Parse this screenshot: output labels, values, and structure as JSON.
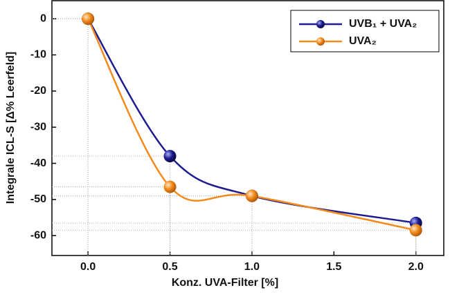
{
  "chart_data": {
    "type": "scatter",
    "x_label": "Konz. UVA-Filter [%]",
    "y_label": "Integrale ICL-S [Δ% Leerfeld]",
    "series": [
      {
        "name": "UVB₁ + UVA₂",
        "color": "#1c1c8f",
        "x": [
          0,
          0.5,
          1.0,
          2.0
        ],
        "values": [
          0,
          -38,
          -49,
          -56.5
        ]
      },
      {
        "name": "UVA₂",
        "color": "#f28a1c",
        "x": [
          0,
          0.5,
          1.0,
          2.0
        ],
        "values": [
          0,
          -46.5,
          -49,
          -58.5
        ]
      }
    ],
    "xlim": [
      -0.22,
      2.17
    ],
    "ylim": [
      -65.5,
      5
    ],
    "xticks": [
      {
        "value": 0,
        "label": "0.0"
      },
      {
        "value": 0.5,
        "label": "0.5"
      },
      {
        "value": 1,
        "label": "1.0"
      },
      {
        "value": 1.5,
        "label": "1.5"
      },
      {
        "value": 2,
        "label": "2.0"
      }
    ],
    "yticks": [
      0,
      -10,
      -20,
      -30,
      -40,
      -50,
      -60
    ],
    "legend": "top-right"
  }
}
